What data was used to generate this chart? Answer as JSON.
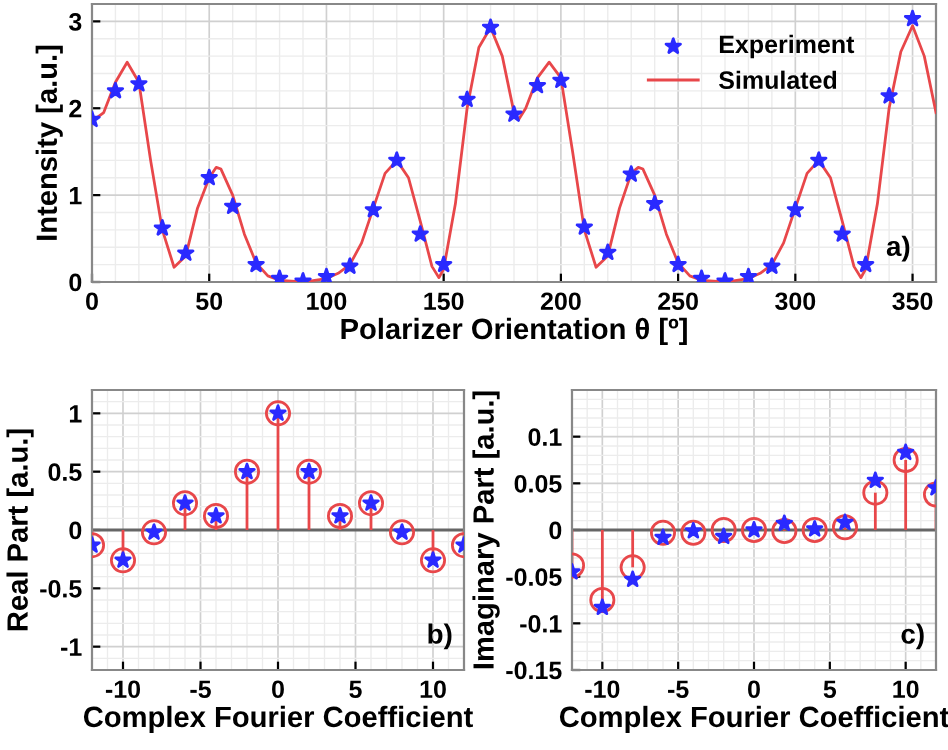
{
  "chart_data": [
    {
      "type": "line",
      "xlabel": "Polarizer Orientation θ [º]",
      "ylabel": "Intensity [a.u.]",
      "xlim": [
        0,
        360
      ],
      "ylim": [
        0,
        3.2
      ],
      "xticks": [
        0,
        50,
        100,
        150,
        200,
        250,
        300,
        350
      ],
      "yticks": [
        0,
        1,
        2,
        3
      ],
      "grid": true,
      "legend": "top right",
      "annotations": [
        "a)"
      ],
      "series": [
        {
          "name": "Experiment",
          "type": "scatter",
          "marker": "star",
          "color": "#2a2aff",
          "x": [
            0,
            10,
            20,
            30,
            40,
            50,
            60,
            70,
            80,
            90,
            100,
            110,
            120,
            130,
            140,
            150,
            160,
            170,
            180,
            190,
            200,
            210,
            220,
            230,
            240,
            250,
            260,
            270,
            280,
            290,
            300,
            310,
            320,
            330,
            340,
            350
          ],
          "values": [
            1.87,
            2.2,
            2.28,
            0.62,
            0.33,
            1.2,
            0.87,
            0.2,
            0.04,
            0.01,
            0.06,
            0.18,
            0.83,
            1.4,
            0.55,
            0.2,
            2.1,
            2.93,
            1.93,
            2.26,
            2.32,
            0.63,
            0.34,
            1.24,
            0.9,
            0.2,
            0.04,
            0.01,
            0.06,
            0.18,
            0.83,
            1.4,
            0.55,
            0.2,
            2.14,
            3.03
          ]
        },
        {
          "name": "Simulated",
          "color": "#e8474a",
          "x": [
            0,
            5,
            10,
            15,
            20,
            25,
            30,
            35,
            40,
            45,
            50,
            53,
            55,
            60,
            65,
            70,
            75,
            80,
            90,
            100,
            105,
            110,
            115,
            120,
            125,
            130,
            135,
            140,
            145,
            148,
            150,
            155,
            160,
            165,
            170,
            175,
            180,
            182,
            185,
            190,
            195,
            200,
            205,
            210,
            215,
            220,
            225,
            230,
            233,
            235,
            240,
            245,
            250,
            255,
            260,
            270,
            280,
            285,
            290,
            295,
            300,
            305,
            310,
            315,
            320,
            325,
            328,
            330,
            335,
            340,
            345,
            350,
            355,
            360
          ],
          "values": [
            1.85,
            1.95,
            2.3,
            2.53,
            2.3,
            1.4,
            0.6,
            0.17,
            0.3,
            0.85,
            1.2,
            1.32,
            1.3,
            1.0,
            0.55,
            0.22,
            0.07,
            0.02,
            0.0,
            0.04,
            0.1,
            0.2,
            0.45,
            0.85,
            1.25,
            1.4,
            1.2,
            0.7,
            0.18,
            0.05,
            0.15,
            0.9,
            2.0,
            2.7,
            2.93,
            2.6,
            1.95,
            1.87,
            2.0,
            2.35,
            2.53,
            2.35,
            1.5,
            0.6,
            0.17,
            0.3,
            0.85,
            1.25,
            1.32,
            1.3,
            1.0,
            0.55,
            0.22,
            0.07,
            0.02,
            0.0,
            0.04,
            0.1,
            0.2,
            0.45,
            0.85,
            1.25,
            1.4,
            1.2,
            0.7,
            0.18,
            0.05,
            0.15,
            0.9,
            2.0,
            2.65,
            2.95,
            2.6,
            1.95
          ]
        }
      ]
    },
    {
      "type": "lollipop",
      "xlabel": "Complex Fourier Coefficient",
      "ylabel": "Real Part [a.u.]",
      "xlim": [
        -12,
        12
      ],
      "ylim": [
        -1.2,
        1.2
      ],
      "xticks": [
        -10,
        -5,
        0,
        5,
        10
      ],
      "yticks": [
        -1,
        -0.5,
        0,
        0.5,
        1
      ],
      "grid": true,
      "annotations": [
        "b)"
      ],
      "x": [
        -12,
        -10,
        -8,
        -6,
        -4,
        -2,
        0,
        2,
        4,
        6,
        8,
        10,
        12
      ],
      "series": [
        {
          "marker": "circle",
          "color": "#e8474a",
          "values": [
            -0.13,
            -0.26,
            -0.02,
            0.23,
            0.12,
            0.5,
            1,
            0.5,
            0.12,
            0.23,
            -0.02,
            -0.26,
            -0.13
          ]
        },
        {
          "type": "scatter",
          "marker": "star",
          "color": "#2a2aff",
          "values": [
            -0.13,
            -0.26,
            -0.02,
            0.23,
            0.12,
            0.5,
            1,
            0.5,
            0.12,
            0.23,
            -0.02,
            -0.26,
            -0.13
          ]
        }
      ]
    },
    {
      "type": "lollipop",
      "xlabel": "Complex Fourier Coefficient",
      "ylabel": "Imaginary Part [a.u.]",
      "xlim": [
        -12,
        12
      ],
      "ylim": [
        -0.15,
        0.15
      ],
      "xticks": [
        -10,
        -5,
        0,
        5,
        10
      ],
      "yticks": [
        -0.15,
        -0.1,
        -0.05,
        0,
        0.05,
        0.1
      ],
      "grid": true,
      "annotations": [
        "c)"
      ],
      "x": [
        -12,
        -10,
        -8,
        -6,
        -4,
        -2,
        0,
        2,
        4,
        6,
        8,
        10,
        12
      ],
      "series": [
        {
          "marker": "circle",
          "color": "#e8474a",
          "values": [
            -0.038,
            -0.075,
            -0.04,
            -0.003,
            -0.003,
            0.0,
            0.0,
            -0.001,
            0.0,
            0.003,
            0.04,
            0.075,
            0.038
          ]
        },
        {
          "type": "scatter",
          "marker": "star",
          "color": "#2a2aff",
          "values": [
            -0.045,
            -0.083,
            -0.053,
            -0.008,
            -0.001,
            -0.007,
            0.0,
            0.007,
            0.001,
            0.008,
            0.053,
            0.083,
            0.045
          ]
        }
      ]
    }
  ]
}
